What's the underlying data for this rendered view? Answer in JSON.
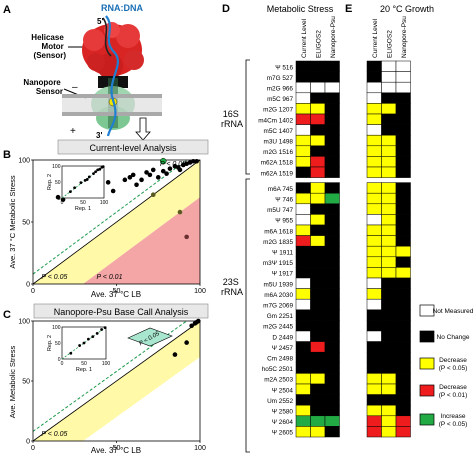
{
  "panels": {
    "A": {
      "letter": "A",
      "rna_dna": "RNA:DNA",
      "five_prime": "5'",
      "three_prime": "3'",
      "helicase": [
        "Helicase",
        "Motor",
        "(Sensor)"
      ],
      "nanopore": [
        "Nanopore",
        "Sensor"
      ],
      "plus": "+",
      "minus": "–"
    },
    "B": {
      "letter": "B",
      "banner": "Current-level Analysis",
      "xlabel": "Ave. 37 °C LB",
      "ylabel": "Ave. 37 °C Metabolic Stress",
      "ticks": [
        "0",
        "50",
        "100"
      ],
      "p005": "P < 0.05",
      "p001": "P < 0.01",
      "inset": {
        "xlabel": "Rep. 1",
        "ylabel": "Rep. 2",
        "ticks": [
          "0",
          "50",
          "100"
        ]
      }
    },
    "C": {
      "letter": "C",
      "banner": "Nanopore-Psu Base Call Analysis",
      "xlabel": "Ave. 37 °C LB",
      "ylabel": "Ave. Metabolic Stress",
      "ticks": [
        "0",
        "50",
        "100"
      ],
      "p005": "P < 0.05",
      "inset": {
        "xlabel": "Rep. 1",
        "ylabel": "Rep. 2",
        "ticks": [
          "0",
          "50",
          "100"
        ]
      }
    },
    "D": {
      "letter": "D",
      "title": "Metabolic Stress",
      "columns": [
        "Current Level",
        "ELIGOS2",
        "Nanopore-Psu"
      ]
    },
    "E": {
      "letter": "E",
      "title": "20 °C Growth",
      "columns": [
        "Current Level",
        "ELIGOS2",
        "Nanopore-Psu"
      ]
    }
  },
  "colors": {
    "yellow": "#ffff00",
    "red": "#ee1c1c",
    "green": "#22aa44",
    "black": "#000000",
    "white": "#ffffff",
    "pink": "#f4a6a6",
    "lightyellow": "#fff9a8",
    "teal": "#a8e6cf"
  },
  "groups": {
    "s16": [
      "16S",
      "rRNA"
    ],
    "s23": [
      "23S",
      "rRNA"
    ]
  },
  "rows": [
    {
      "label": "Ψ 516",
      "d": [
        "k",
        "k",
        "k"
      ],
      "e": [
        "k",
        "w",
        "w"
      ]
    },
    {
      "label": "m7G 527",
      "d": [
        "k",
        "k",
        "k"
      ],
      "e": [
        "k",
        "w",
        "w"
      ]
    },
    {
      "label": "m2G 966",
      "d": [
        "w",
        "w",
        "w"
      ],
      "e": [
        "w",
        "w",
        "w"
      ]
    },
    {
      "label": "m5C 967",
      "d": [
        "w",
        "k",
        "k"
      ],
      "e": [
        "w",
        "k",
        "k"
      ]
    },
    {
      "label": "m2G 1207",
      "d": [
        "y",
        "y",
        "k"
      ],
      "e": [
        "y",
        "y",
        "k"
      ]
    },
    {
      "label": "m4Cm 1402",
      "d": [
        "r",
        "r",
        "k"
      ],
      "e": [
        "y",
        "k",
        "k"
      ]
    },
    {
      "label": "m5C 1407",
      "d": [
        "w",
        "k",
        "k"
      ],
      "e": [
        "w",
        "k",
        "k"
      ]
    },
    {
      "label": "m3U 1498",
      "d": [
        "y",
        "y",
        "k"
      ],
      "e": [
        "y",
        "y",
        "k"
      ]
    },
    {
      "label": "m2G 1516",
      "d": [
        "y",
        "k",
        "k"
      ],
      "e": [
        "y",
        "y",
        "k"
      ]
    },
    {
      "label": "m62A 1518",
      "d": [
        "y",
        "r",
        "k"
      ],
      "e": [
        "y",
        "y",
        "k"
      ]
    },
    {
      "label": "m62A 1519",
      "d": [
        "k",
        "r",
        "k"
      ],
      "e": [
        "y",
        "y",
        "k"
      ]
    },
    {
      "label": "m6A 745",
      "d": [
        "k",
        "y",
        "k"
      ],
      "e": [
        "y",
        "y",
        "k"
      ]
    },
    {
      "label": "Ψ 746",
      "d": [
        "y",
        "y",
        "g"
      ],
      "e": [
        "y",
        "y",
        "k"
      ]
    },
    {
      "label": "m5U 747",
      "d": [
        "w",
        "k",
        "k"
      ],
      "e": [
        "y",
        "y",
        "k"
      ]
    },
    {
      "label": "Ψ 955",
      "d": [
        "w",
        "y",
        "k"
      ],
      "e": [
        "w",
        "y",
        "k"
      ]
    },
    {
      "label": "m6A 1618",
      "d": [
        "y",
        "k",
        "k"
      ],
      "e": [
        "y",
        "y",
        "k"
      ]
    },
    {
      "label": "m2G 1835",
      "d": [
        "r",
        "y",
        "k"
      ],
      "e": [
        "y",
        "y",
        "k"
      ]
    },
    {
      "label": "Ψ 1911",
      "d": [
        "k",
        "k",
        "k"
      ],
      "e": [
        "y",
        "y",
        "y"
      ]
    },
    {
      "label": "m3Ψ 1915",
      "d": [
        "k",
        "k",
        "k"
      ],
      "e": [
        "y",
        "y",
        "k"
      ]
    },
    {
      "label": "Ψ 1917",
      "d": [
        "k",
        "k",
        "k"
      ],
      "e": [
        "y",
        "y",
        "y"
      ]
    },
    {
      "label": "m5U 1939",
      "d": [
        "w",
        "k",
        "k"
      ],
      "e": [
        "w",
        "k",
        "k"
      ]
    },
    {
      "label": "m6A 2030",
      "d": [
        "y",
        "k",
        "k"
      ],
      "e": [
        "y",
        "k",
        "k"
      ]
    },
    {
      "label": "m7G 2069",
      "d": [
        "w",
        "k",
        "k"
      ],
      "e": [
        "w",
        "k",
        "k"
      ]
    },
    {
      "label": "Gm 2251",
      "d": [
        "k",
        "k",
        "k"
      ],
      "e": [
        "k",
        "k",
        "k"
      ]
    },
    {
      "label": "m2G 2445",
      "d": [
        "k",
        "k",
        "k"
      ],
      "e": [
        "k",
        "k",
        "k"
      ]
    },
    {
      "label": "D 2449",
      "d": [
        "w",
        "k",
        "k"
      ],
      "e": [
        "w",
        "k",
        "k"
      ]
    },
    {
      "label": "Ψ 2457",
      "d": [
        "k",
        "r",
        "k"
      ],
      "e": [
        "k",
        "k",
        "k"
      ]
    },
    {
      "label": "Cm 2498",
      "d": [
        "k",
        "k",
        "k"
      ],
      "e": [
        "k",
        "k",
        "k"
      ]
    },
    {
      "label": "ho5C 2501",
      "d": [
        "k",
        "k",
        "k"
      ],
      "e": [
        "k",
        "k",
        "k"
      ]
    },
    {
      "label": "m2A 2503",
      "d": [
        "y",
        "y",
        "k"
      ],
      "e": [
        "y",
        "y",
        "k"
      ]
    },
    {
      "label": "Ψ 2504",
      "d": [
        "y",
        "k",
        "k"
      ],
      "e": [
        "y",
        "y",
        "k"
      ]
    },
    {
      "label": "Um 2552",
      "d": [
        "k",
        "k",
        "k"
      ],
      "e": [
        "k",
        "k",
        "k"
      ]
    },
    {
      "label": "Ψ 2580",
      "d": [
        "y",
        "k",
        "k"
      ],
      "e": [
        "y",
        "y",
        "k"
      ]
    },
    {
      "label": "Ψ 2604",
      "d": [
        "g",
        "g",
        "g"
      ],
      "e": [
        "r",
        "y",
        "r"
      ]
    },
    {
      "label": "Ψ 2605",
      "d": [
        "y",
        "y",
        "k"
      ],
      "e": [
        "r",
        "y",
        "r"
      ]
    }
  ],
  "legend": [
    {
      "code": "w",
      "label": "Not Measured"
    },
    {
      "code": "k",
      "label": "No Change"
    },
    {
      "code": "y",
      "label": "Decrease (P < 0.05)"
    },
    {
      "code": "r",
      "label": "Decrease (P < 0.01)"
    },
    {
      "code": "g",
      "label": "Increase (P < 0.05)"
    }
  ],
  "chart_data": [
    {
      "type": "scatter",
      "title": "Current-level Analysis",
      "xlabel": "Ave. 37 °C LB",
      "ylabel": "Ave. 37 °C Metabolic Stress",
      "xlim": [
        0,
        100
      ],
      "ylim": [
        0,
        100
      ],
      "points": [
        [
          15,
          70
        ],
        [
          18,
          68
        ],
        [
          22,
          74
        ],
        [
          25,
          80
        ],
        [
          40,
          78
        ],
        [
          45,
          82
        ],
        [
          48,
          75
        ],
        [
          55,
          84
        ],
        [
          58,
          86
        ],
        [
          60,
          88
        ],
        [
          62,
          80
        ],
        [
          65,
          84
        ],
        [
          68,
          90
        ],
        [
          70,
          88
        ],
        [
          72,
          92
        ],
        [
          75,
          86
        ],
        [
          78,
          91
        ],
        [
          80,
          89
        ],
        [
          82,
          93
        ],
        [
          85,
          95
        ],
        [
          87,
          94
        ],
        [
          88,
          92
        ],
        [
          90,
          96
        ],
        [
          92,
          97
        ],
        [
          94,
          98
        ],
        [
          96,
          99
        ],
        [
          98,
          99
        ]
      ],
      "green_points": [
        [
          78,
          99
        ]
      ],
      "yellow_points": [
        [
          72,
          72
        ],
        [
          88,
          58
        ]
      ],
      "red_points": [
        [
          92,
          38
        ]
      ],
      "inset": {
        "xlabel": "Rep. 1",
        "ylabel": "Rep. 2",
        "points": [
          [
            20,
            20
          ],
          [
            30,
            32
          ],
          [
            45,
            48
          ],
          [
            55,
            55
          ],
          [
            60,
            58
          ],
          [
            65,
            66
          ],
          [
            75,
            76
          ],
          [
            80,
            82
          ],
          [
            85,
            88
          ],
          [
            90,
            90
          ],
          [
            95,
            96
          ],
          [
            98,
            98
          ]
        ]
      }
    },
    {
      "type": "scatter",
      "title": "Nanopore-Psu Base Call Analysis",
      "xlabel": "Ave. 37 °C LB",
      "ylabel": "Ave. Metabolic Stress",
      "xlim": [
        0,
        100
      ],
      "ylim": [
        0,
        100
      ],
      "points": [
        [
          85,
          72
        ],
        [
          92,
          82
        ],
        [
          95,
          96
        ],
        [
          97,
          98
        ],
        [
          98,
          99
        ],
        [
          99,
          100
        ]
      ],
      "green_points": [],
      "yellow_points": [],
      "red_points": [],
      "inset": {
        "xlabel": "Rep. 1",
        "ylabel": "Rep. 2",
        "points": [
          [
            20,
            18
          ],
          [
            40,
            42
          ],
          [
            50,
            50
          ],
          [
            60,
            62
          ],
          [
            70,
            70
          ],
          [
            80,
            80
          ],
          [
            90,
            92
          ],
          [
            98,
            98
          ]
        ]
      }
    }
  ]
}
